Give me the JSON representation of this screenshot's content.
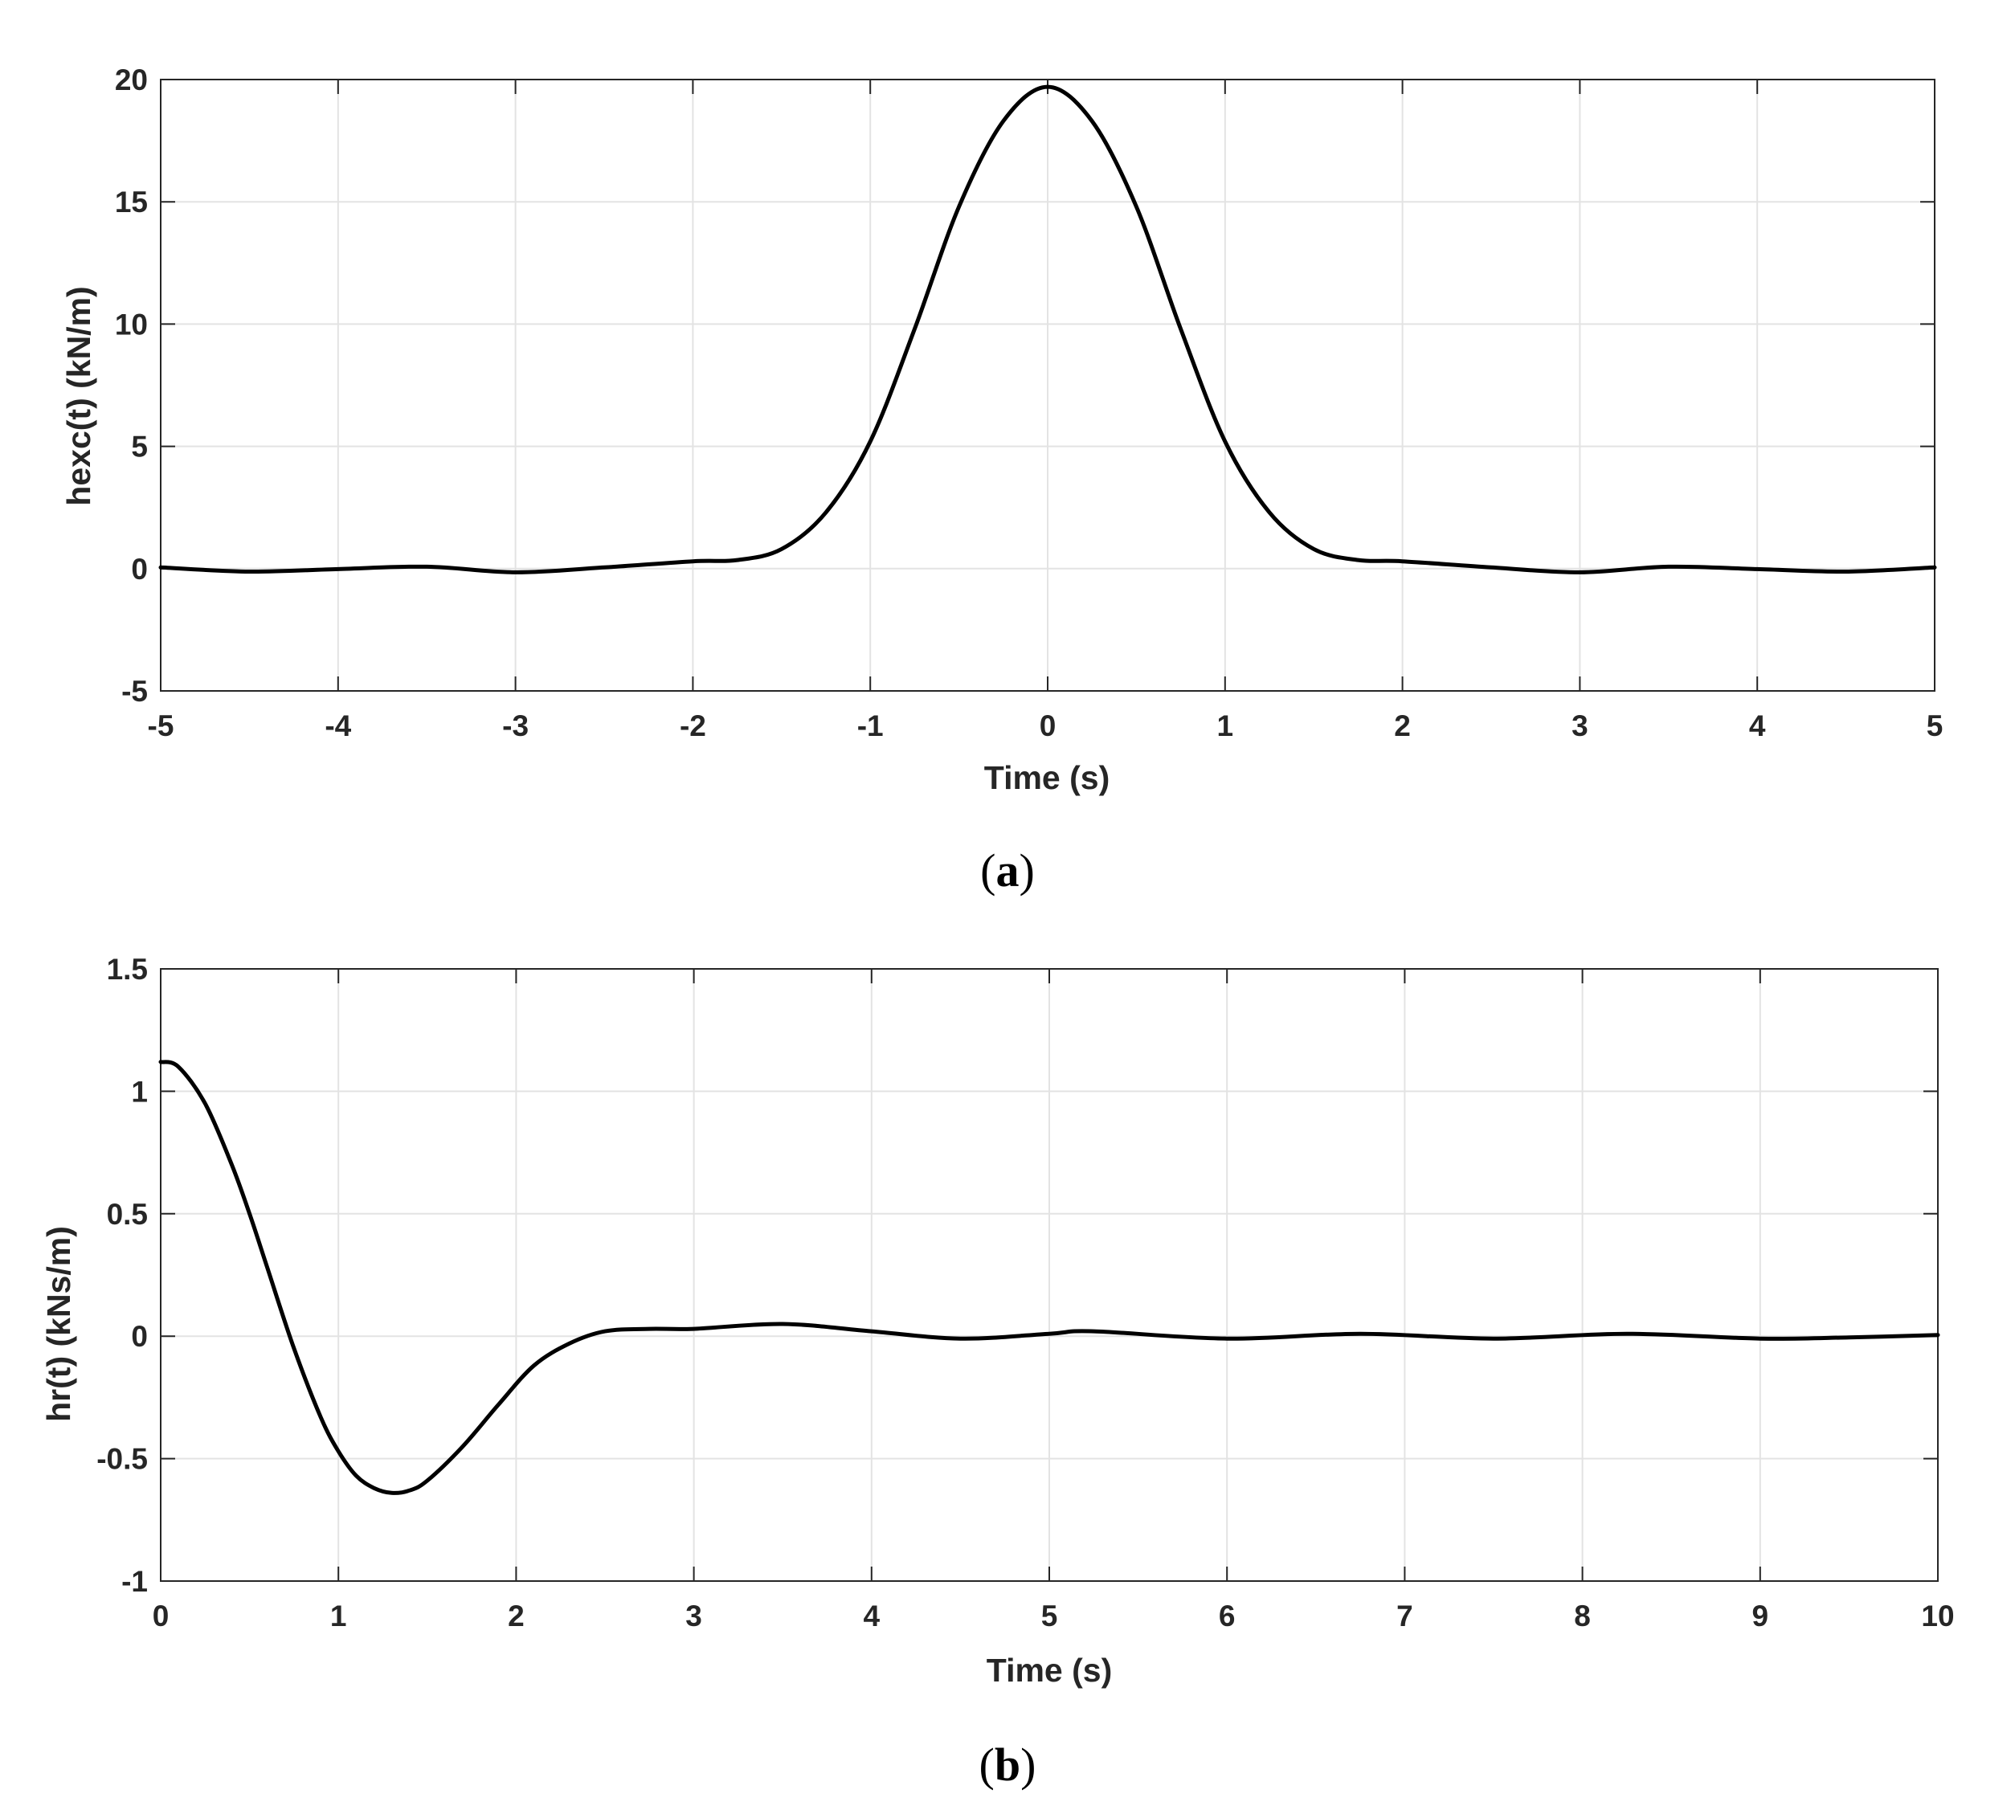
{
  "chart_data": [
    {
      "type": "line",
      "panel_label": {
        "open": "(",
        "letter": "a",
        "close": ")"
      },
      "title": "",
      "xlabel": "Time (s)",
      "ylabel": "hexc(t)  (kN/m)",
      "xlim": [
        -5,
        5
      ],
      "ylim": [
        -5,
        20
      ],
      "xticks": [
        -5,
        -4,
        -3,
        -2,
        -1,
        0,
        1,
        2,
        3,
        4,
        5
      ],
      "yticks": [
        -5,
        0,
        5,
        10,
        15,
        20
      ],
      "grid": true,
      "line_color": "#000000",
      "series": [
        {
          "x": [
            -5,
            -4.5,
            -4,
            -3.5,
            -3,
            -2.5,
            -2,
            -1.75,
            -1.5,
            -1.25,
            -1,
            -0.75,
            -0.5,
            -0.25,
            0,
            0.25,
            0.5,
            0.75,
            1,
            1.25,
            1.5,
            1.75,
            2,
            2.5,
            3,
            3.5,
            4,
            4.5,
            5
          ],
          "y": [
            0.05,
            -0.12,
            -0.02,
            0.08,
            -0.15,
            0.05,
            0.3,
            0.35,
            0.8,
            2.3,
            5.2,
            9.8,
            14.8,
            18.3,
            19.7,
            18.3,
            14.8,
            9.8,
            5.2,
            2.3,
            0.8,
            0.35,
            0.3,
            0.05,
            -0.15,
            0.08,
            -0.02,
            -0.12,
            0.05
          ]
        }
      ]
    },
    {
      "type": "line",
      "panel_label": {
        "open": "(",
        "letter": "b",
        "close": ")"
      },
      "title": "",
      "xlabel": "Time (s)",
      "ylabel": "hr(t)  (kNs/m)",
      "xlim": [
        0,
        10
      ],
      "ylim": [
        -1,
        1.5
      ],
      "xticks": [
        0,
        1,
        2,
        3,
        4,
        5,
        6,
        7,
        8,
        9,
        10
      ],
      "yticks": [
        -1,
        -0.5,
        0,
        0.5,
        1,
        1.5
      ],
      "grid": true,
      "line_color": "#000000",
      "series": [
        {
          "x": [
            0,
            0.1,
            0.25,
            0.4,
            0.5,
            0.6,
            0.75,
            0.9,
            1.0,
            1.1,
            1.2,
            1.3,
            1.4,
            1.5,
            1.7,
            1.9,
            2.1,
            2.3,
            2.5,
            2.75,
            3.0,
            3.5,
            4.0,
            4.5,
            5.0,
            5.25,
            6.0,
            6.75,
            7.5,
            8.25,
            9.0,
            9.5,
            10.0
          ],
          "y": [
            1.12,
            1.1,
            0.95,
            0.7,
            0.5,
            0.28,
            -0.05,
            -0.33,
            -0.47,
            -0.57,
            -0.62,
            -0.64,
            -0.63,
            -0.59,
            -0.45,
            -0.28,
            -0.12,
            -0.03,
            0.02,
            0.03,
            0.03,
            0.05,
            0.02,
            -0.01,
            0.01,
            0.02,
            -0.01,
            0.01,
            -0.01,
            0.01,
            -0.01,
            -0.005,
            0.005
          ]
        }
      ]
    }
  ]
}
